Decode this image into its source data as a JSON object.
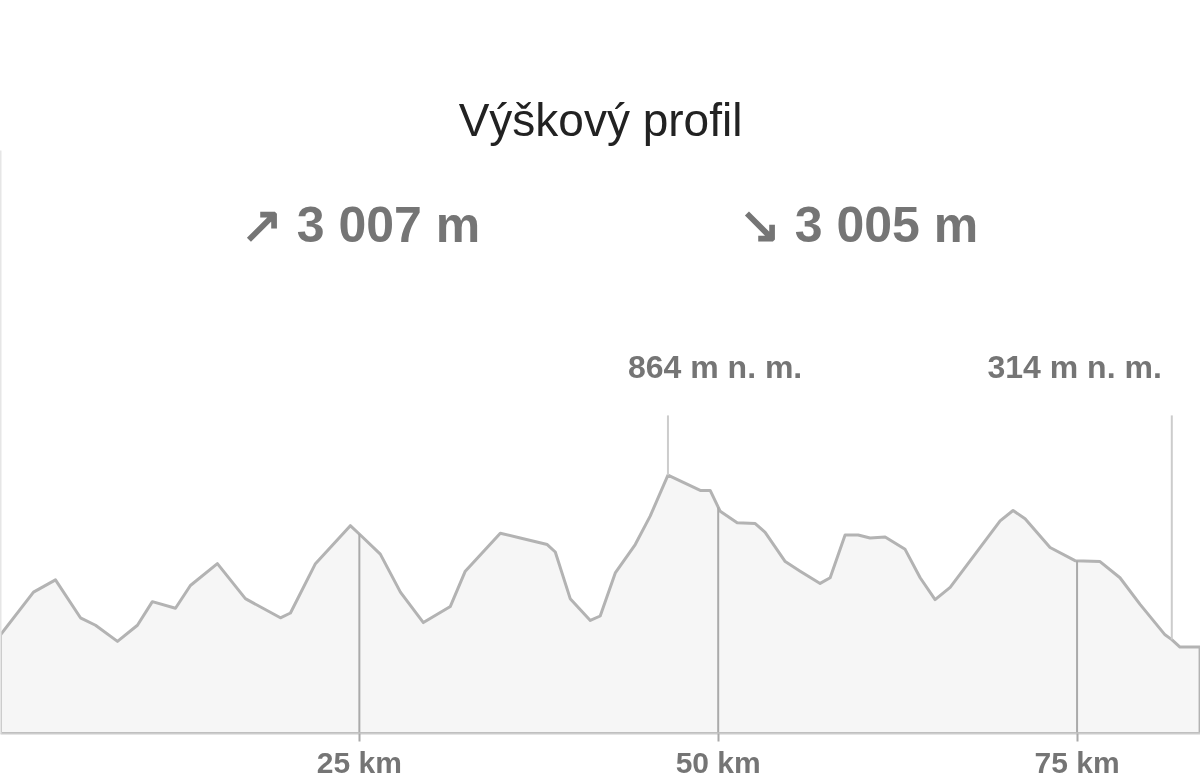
{
  "chart_data": {
    "type": "area",
    "title": "Výškový profil",
    "annotations": [
      "↗ 3 007 m",
      "↘ 3 005 m"
    ],
    "x": [
      0,
      2.3,
      3.83,
      5.57,
      6.62,
      8.15,
      9.54,
      10.58,
      12.19,
      13.23,
      15.11,
      17.06,
      19.5,
      20.2,
      21.94,
      24.37,
      25.07,
      26.46,
      27.86,
      29.46,
      31.34,
      32.38,
      34.82,
      36.21,
      38.09,
      38.65,
      39.69,
      41.09,
      41.78,
      42.83,
      44.22,
      45.26,
      46.5,
      48.75,
      49.44,
      50.14,
      51.32,
      52.58,
      53.27,
      54.67,
      55.71,
      57.1,
      57.8,
      58.84,
      59.75,
      60.58,
      61.63,
      63.02,
      64.07,
      65.11,
      66.16,
      67.9,
      69.64,
      70.54,
      71.38,
      73.12,
      74.86,
      76.6,
      77.99,
      79.39,
      81.13,
      81.6,
      82.17,
      83.57
    ],
    "values": [
      330,
      473,
      514,
      387,
      362,
      308,
      362,
      441,
      419,
      495,
      568,
      451,
      387,
      403,
      568,
      695,
      664,
      600,
      473,
      371,
      425,
      543,
      670,
      654,
      632,
      607,
      451,
      378,
      393,
      537,
      632,
      727,
      864,
      813,
      813,
      743,
      705,
      702,
      673,
      575,
      543,
      502,
      521,
      664,
      664,
      654,
      657,
      616,
      521,
      448,
      489,
      600,
      711,
      746,
      718,
      622,
      578,
      575,
      521,
      432,
      330,
      314,
      289,
      289
    ],
    "value_labels": [
      null,
      null,
      null,
      null,
      null,
      null,
      null,
      null,
      null,
      null,
      null,
      null,
      null,
      null,
      null,
      null,
      null,
      null,
      null,
      null,
      null,
      null,
      null,
      null,
      null,
      null,
      null,
      null,
      null,
      null,
      null,
      null,
      "864 m n. m.",
      null,
      null,
      null,
      null,
      null,
      null,
      null,
      null,
      null,
      null,
      null,
      null,
      null,
      null,
      null,
      null,
      null,
      null,
      null,
      null,
      null,
      null,
      null,
      null,
      null,
      null,
      null,
      null,
      "314 m n. m.",
      null,
      null
    ],
    "color": "#b3b3b3",
    "xlim": [
      0,
      83.6
    ],
    "ylim": [
      0,
      1950
    ],
    "xticks": [
      {
        "value": 25,
        "label": "25 km"
      },
      {
        "value": 50,
        "label": "50 km"
      },
      {
        "value": 75,
        "label": "75 km"
      }
    ],
    "ref_lines": [
      {
        "axis": "x",
        "value": 25,
        "color": "#aaaaaa"
      },
      {
        "axis": "x",
        "value": 50,
        "color": "#aaaaaa"
      },
      {
        "axis": "x",
        "value": 75,
        "color": "#aaaaaa"
      }
    ],
    "tick_labels": "x"
  }
}
